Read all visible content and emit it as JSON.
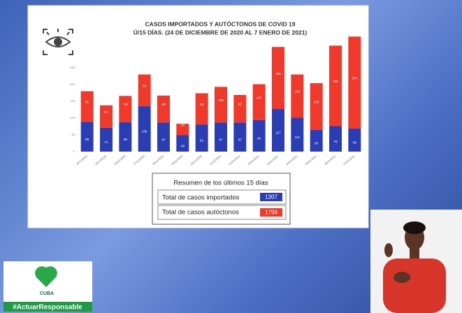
{
  "chart_data": {
    "type": "bar",
    "stacked": true,
    "title": "CASOS IMPORTADOS Y AUTÓCTONOS DE COVID 19",
    "subtitle": "Ú/15 DÍAS. (24 DE DICIEMBRE DE 2020 AL  7 ENERO DE 2021)",
    "categories": [
      "24/12/2020",
      "25/12/2020",
      "26/12/2020",
      "27/12/2020",
      "28/12/2020",
      "29/12/2020",
      "30/12/2020",
      "31/12/2020",
      "01/01/2021",
      "02/01/2021",
      "03/01/2021",
      "04/01/2021",
      "05/01/2021",
      "06/01/2021",
      "07/01/2021"
    ],
    "series": [
      {
        "color": "#2b3db5",
        "values": [
          89,
          71,
          88,
          136,
          87,
          49,
          81,
          87,
          87,
          94,
          127,
          101,
          65,
          76,
          69
        ]
      },
      {
        "color": "#f0392b",
        "values": [
          91,
          67,
          78,
          94,
          80,
          34,
          93,
          106,
          82,
          107,
          185,
          129,
          139,
          240,
          274
        ]
      }
    ],
    "ylim": [
      0,
      350
    ],
    "yticks": [
      0,
      50,
      100,
      150,
      200,
      250
    ]
  },
  "summary": {
    "title": "Resumen  de los últimos 15 días",
    "rows": [
      {
        "label": "Total de casos importados",
        "value": 1307,
        "color": "#2b3db5"
      },
      {
        "label": "Total de casos autóctonos",
        "value": 1799,
        "color": "#f0392b"
      }
    ]
  },
  "logo": {
    "text": "CUBA",
    "hashtag": "#ActuarResponsable"
  }
}
